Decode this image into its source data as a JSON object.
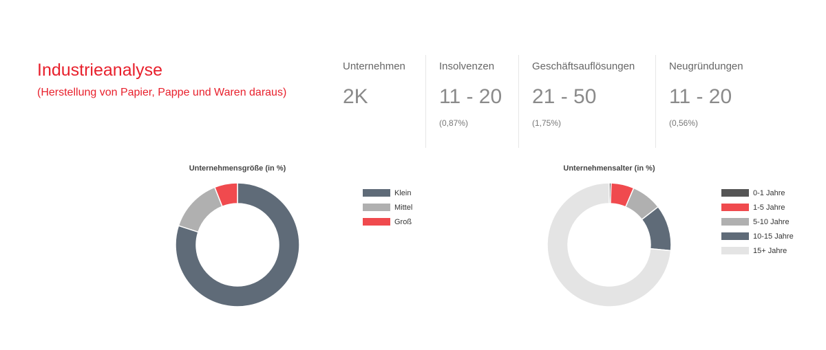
{
  "header": {
    "title": "Industrieanalyse",
    "subtitle": "(Herstellung von Papier, Pappe und Waren daraus)"
  },
  "stats": [
    {
      "label": "Unternehmen",
      "value": "2K",
      "pct": ""
    },
    {
      "label": "Insolvenzen",
      "value": "11 - 20",
      "pct": "(0,87%)"
    },
    {
      "label": "Geschäftsauflösungen",
      "value": "21 - 50",
      "pct": "(1,75%)"
    },
    {
      "label": "Neugründungen",
      "value": "11 - 20",
      "pct": "(0,56%)"
    }
  ],
  "chart_data": [
    {
      "type": "pie",
      "title": "Unternehmensgröße (in %)",
      "donut": true,
      "categories": [
        "Klein",
        "Mittel",
        "Groß"
      ],
      "values": [
        80,
        14,
        6
      ],
      "colors": [
        "#5f6b78",
        "#b0b0b0",
        "#f04a4e"
      ],
      "legend": "right"
    },
    {
      "type": "pie",
      "title": "Unternehmensalter (in %)",
      "donut": true,
      "categories": [
        "0-1 Jahre",
        "1-5 Jahre",
        "5-10 Jahre",
        "10-15 Jahre",
        "15+ Jahre"
      ],
      "values": [
        0.5,
        6,
        8,
        12,
        73.5
      ],
      "colors": [
        "#555555",
        "#f04a4e",
        "#b0b0b0",
        "#5f6b78",
        "#e4e4e4"
      ],
      "legend": "right"
    }
  ]
}
